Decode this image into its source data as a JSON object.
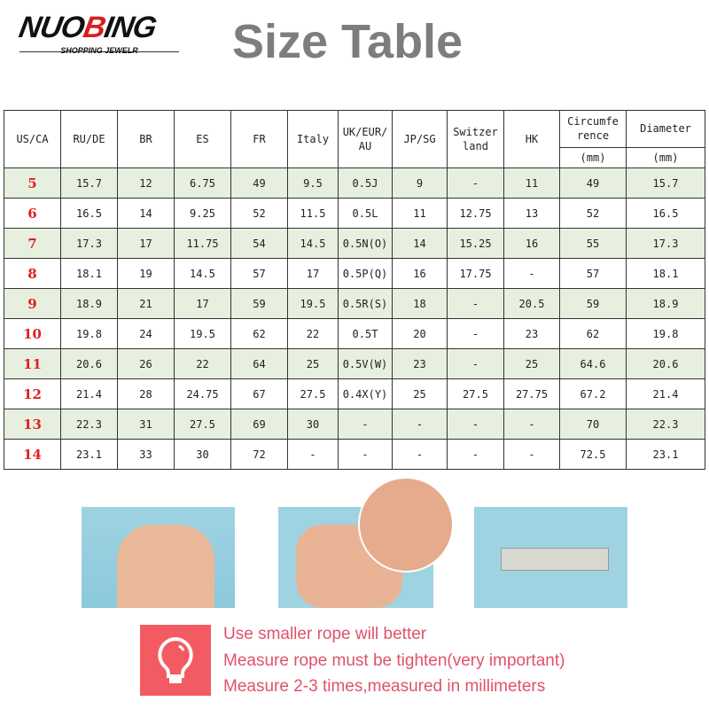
{
  "logo": {
    "brand_pre": "NUO",
    "brand_red": "B",
    "brand_post": "ING",
    "tagline": "SHOPPING JEWELR"
  },
  "title": "Size Table",
  "table": {
    "headers": [
      "US/CA",
      "RU/DE",
      "BR",
      "ES",
      "FR",
      "Italy",
      "UK/EUR/ AU",
      "JP/SG",
      "Switzer land",
      "HK",
      "Circumfe rence",
      "Diameter"
    ],
    "units": {
      "circumference": "(mm)",
      "diameter": "(mm)"
    },
    "rows": [
      [
        "5",
        "15.7",
        "12",
        "6.75",
        "49",
        "9.5",
        "0.5J",
        "9",
        "-",
        "11",
        "49",
        "15.7"
      ],
      [
        "6",
        "16.5",
        "14",
        "9.25",
        "52",
        "11.5",
        "0.5L",
        "11",
        "12.75",
        "13",
        "52",
        "16.5"
      ],
      [
        "7",
        "17.3",
        "17",
        "11.75",
        "54",
        "14.5",
        "0.5N(O)",
        "14",
        "15.25",
        "16",
        "55",
        "17.3"
      ],
      [
        "8",
        "18.1",
        "19",
        "14.5",
        "57",
        "17",
        "0.5P(Q)",
        "16",
        "17.75",
        "-",
        "57",
        "18.1"
      ],
      [
        "9",
        "18.9",
        "21",
        "17",
        "59",
        "19.5",
        "0.5R(S)",
        "18",
        "-",
        "20.5",
        "59",
        "18.9"
      ],
      [
        "10",
        "19.8",
        "24",
        "19.5",
        "62",
        "22",
        "0.5T",
        "20",
        "-",
        "23",
        "62",
        "19.8"
      ],
      [
        "11",
        "20.6",
        "26",
        "22",
        "64",
        "25",
        "0.5V(W)",
        "23",
        "-",
        "25",
        "64.6",
        "20.6"
      ],
      [
        "12",
        "21.4",
        "28",
        "24.75",
        "67",
        "27.5",
        "0.4X(Y)",
        "25",
        "27.5",
        "27.75",
        "67.2",
        "21.4"
      ],
      [
        "13",
        "22.3",
        "31",
        "27.5",
        "69",
        "30",
        "-",
        "-",
        "-",
        "-",
        "70",
        "22.3"
      ],
      [
        "14",
        "23.1",
        "33",
        "30",
        "72",
        "-",
        "-",
        "-",
        "-",
        "-",
        "72.5",
        "23.1"
      ]
    ]
  },
  "tips": [
    "Use smaller rope will better",
    "Measure rope must be tighten(very important)",
    "Measure 2-3 times,measured in millimeters"
  ],
  "icons": {
    "tip": "lightbulb-icon"
  },
  "colors": {
    "accent": "#f35b63",
    "tip_text": "#e0526a",
    "row_shade": "#e7f0df",
    "size_text": "#d22222"
  }
}
